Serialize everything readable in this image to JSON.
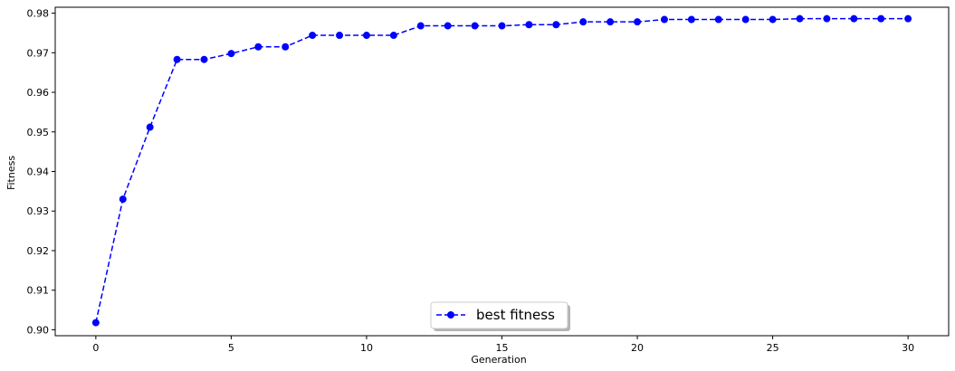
{
  "chart_data": {
    "type": "line",
    "xlabel": "Generation",
    "ylabel": "Fitness",
    "xlim": [
      -1.5,
      31.5
    ],
    "ylim": [
      0.8985,
      0.9815
    ],
    "xticks": [
      0,
      5,
      10,
      15,
      20,
      25,
      30
    ],
    "yticks": [
      0.9,
      0.91,
      0.92,
      0.93,
      0.94,
      0.95,
      0.96,
      0.97,
      0.98
    ],
    "ytick_labels": [
      "0.90",
      "0.91",
      "0.92",
      "0.93",
      "0.94",
      "0.95",
      "0.96",
      "0.97",
      "0.98"
    ],
    "grid": false,
    "legend_position": "lower center",
    "series": [
      {
        "name": "best fitness",
        "color": "#0000ff",
        "line_style": "dashed",
        "marker": "circle",
        "x": [
          0,
          1,
          2,
          3,
          4,
          5,
          6,
          7,
          8,
          9,
          10,
          11,
          12,
          13,
          14,
          15,
          16,
          17,
          18,
          19,
          20,
          21,
          22,
          23,
          24,
          25,
          26,
          27,
          28,
          29,
          30
        ],
        "values": [
          0.9018,
          0.933,
          0.9512,
          0.9683,
          0.9683,
          0.9698,
          0.9715,
          0.9715,
          0.9744,
          0.9744,
          0.9744,
          0.9744,
          0.9768,
          0.9768,
          0.9768,
          0.9768,
          0.9771,
          0.9771,
          0.9778,
          0.9778,
          0.9778,
          0.9784,
          0.9784,
          0.9784,
          0.9784,
          0.9784,
          0.9786,
          0.9786,
          0.9786,
          0.9786,
          0.9786
        ]
      }
    ]
  }
}
